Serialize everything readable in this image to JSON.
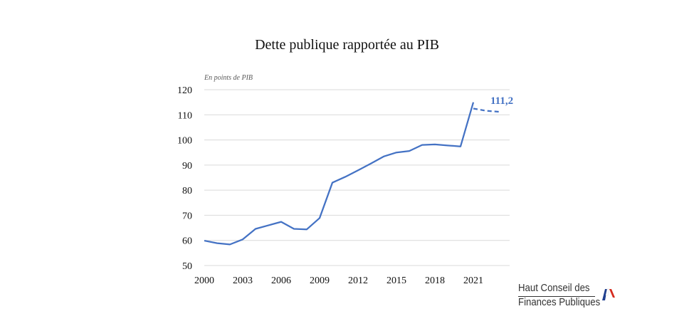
{
  "chart_data": {
    "type": "line",
    "title": "Dette publique rapportée au PIB",
    "unit_note": "En points de PIB",
    "ylim": [
      50,
      120
    ],
    "yticks": [
      "120",
      "110",
      "100",
      "90",
      "80",
      "70",
      "60",
      "50"
    ],
    "xticks": [
      "2000",
      "2003",
      "2006",
      "2009",
      "2012",
      "2015",
      "2018",
      "2021"
    ],
    "grid": true,
    "series": [
      {
        "color": "#4472c4",
        "style": "solid",
        "x": [
          2000,
          2001,
          2002,
          2003,
          2004,
          2005,
          2006,
          2007,
          2008,
          2009,
          2010,
          2011,
          2012,
          2013,
          2014,
          2015,
          2016,
          2017,
          2018,
          2019,
          2020,
          2021
        ],
        "y": [
          59.9,
          58.9,
          58.4,
          60.4,
          64.6,
          66.0,
          67.4,
          64.6,
          64.4,
          68.9,
          83.0,
          85.3,
          87.9,
          90.6,
          93.4,
          95.0,
          95.6,
          98.0,
          98.2,
          97.8,
          97.4,
          115.0
        ]
      },
      {
        "color": "#4472c4",
        "style": "dashed",
        "x": [
          2021,
          2022,
          2023
        ],
        "y": [
          112.5,
          111.6,
          111.2
        ]
      }
    ],
    "annotation": {
      "text": "111,2",
      "color": "#4472c4"
    }
  },
  "logo": {
    "line1": "Haut Conseil des",
    "line2": "Finances Publiques"
  }
}
